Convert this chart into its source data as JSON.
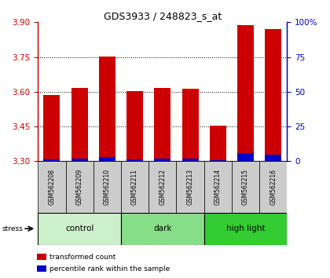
{
  "title": "GDS3933 / 248823_s_at",
  "samples": [
    "GSM562208",
    "GSM562209",
    "GSM562210",
    "GSM562211",
    "GSM562212",
    "GSM562213",
    "GSM562214",
    "GSM562215",
    "GSM562216"
  ],
  "red_values": [
    3.585,
    3.615,
    3.752,
    3.603,
    3.617,
    3.612,
    3.452,
    3.888,
    3.872
  ],
  "blue_values": [
    3.308,
    3.312,
    3.318,
    3.308,
    3.31,
    3.311,
    3.305,
    3.335,
    3.328
  ],
  "ymin": 3.3,
  "ymax": 3.9,
  "yticks_left": [
    3.3,
    3.45,
    3.6,
    3.75,
    3.9
  ],
  "yticks_right": [
    0,
    25,
    50,
    75,
    100
  ],
  "grid_lines": [
    3.45,
    3.6,
    3.75
  ],
  "groups": [
    {
      "label": "control",
      "indices": [
        0,
        1,
        2
      ],
      "color": "#ccf0cc"
    },
    {
      "label": "dark",
      "indices": [
        3,
        4,
        5
      ],
      "color": "#88dd88"
    },
    {
      "label": "high light",
      "indices": [
        6,
        7,
        8
      ],
      "color": "#33cc33"
    }
  ],
  "bar_color_red": "#cc0000",
  "bar_color_blue": "#0000cc",
  "bar_width": 0.6,
  "left_axis_color": "#cc0000",
  "right_axis_color": "#0000cc",
  "stress_label": "stress",
  "legend_items": [
    "transformed count",
    "percentile rank within the sample"
  ]
}
